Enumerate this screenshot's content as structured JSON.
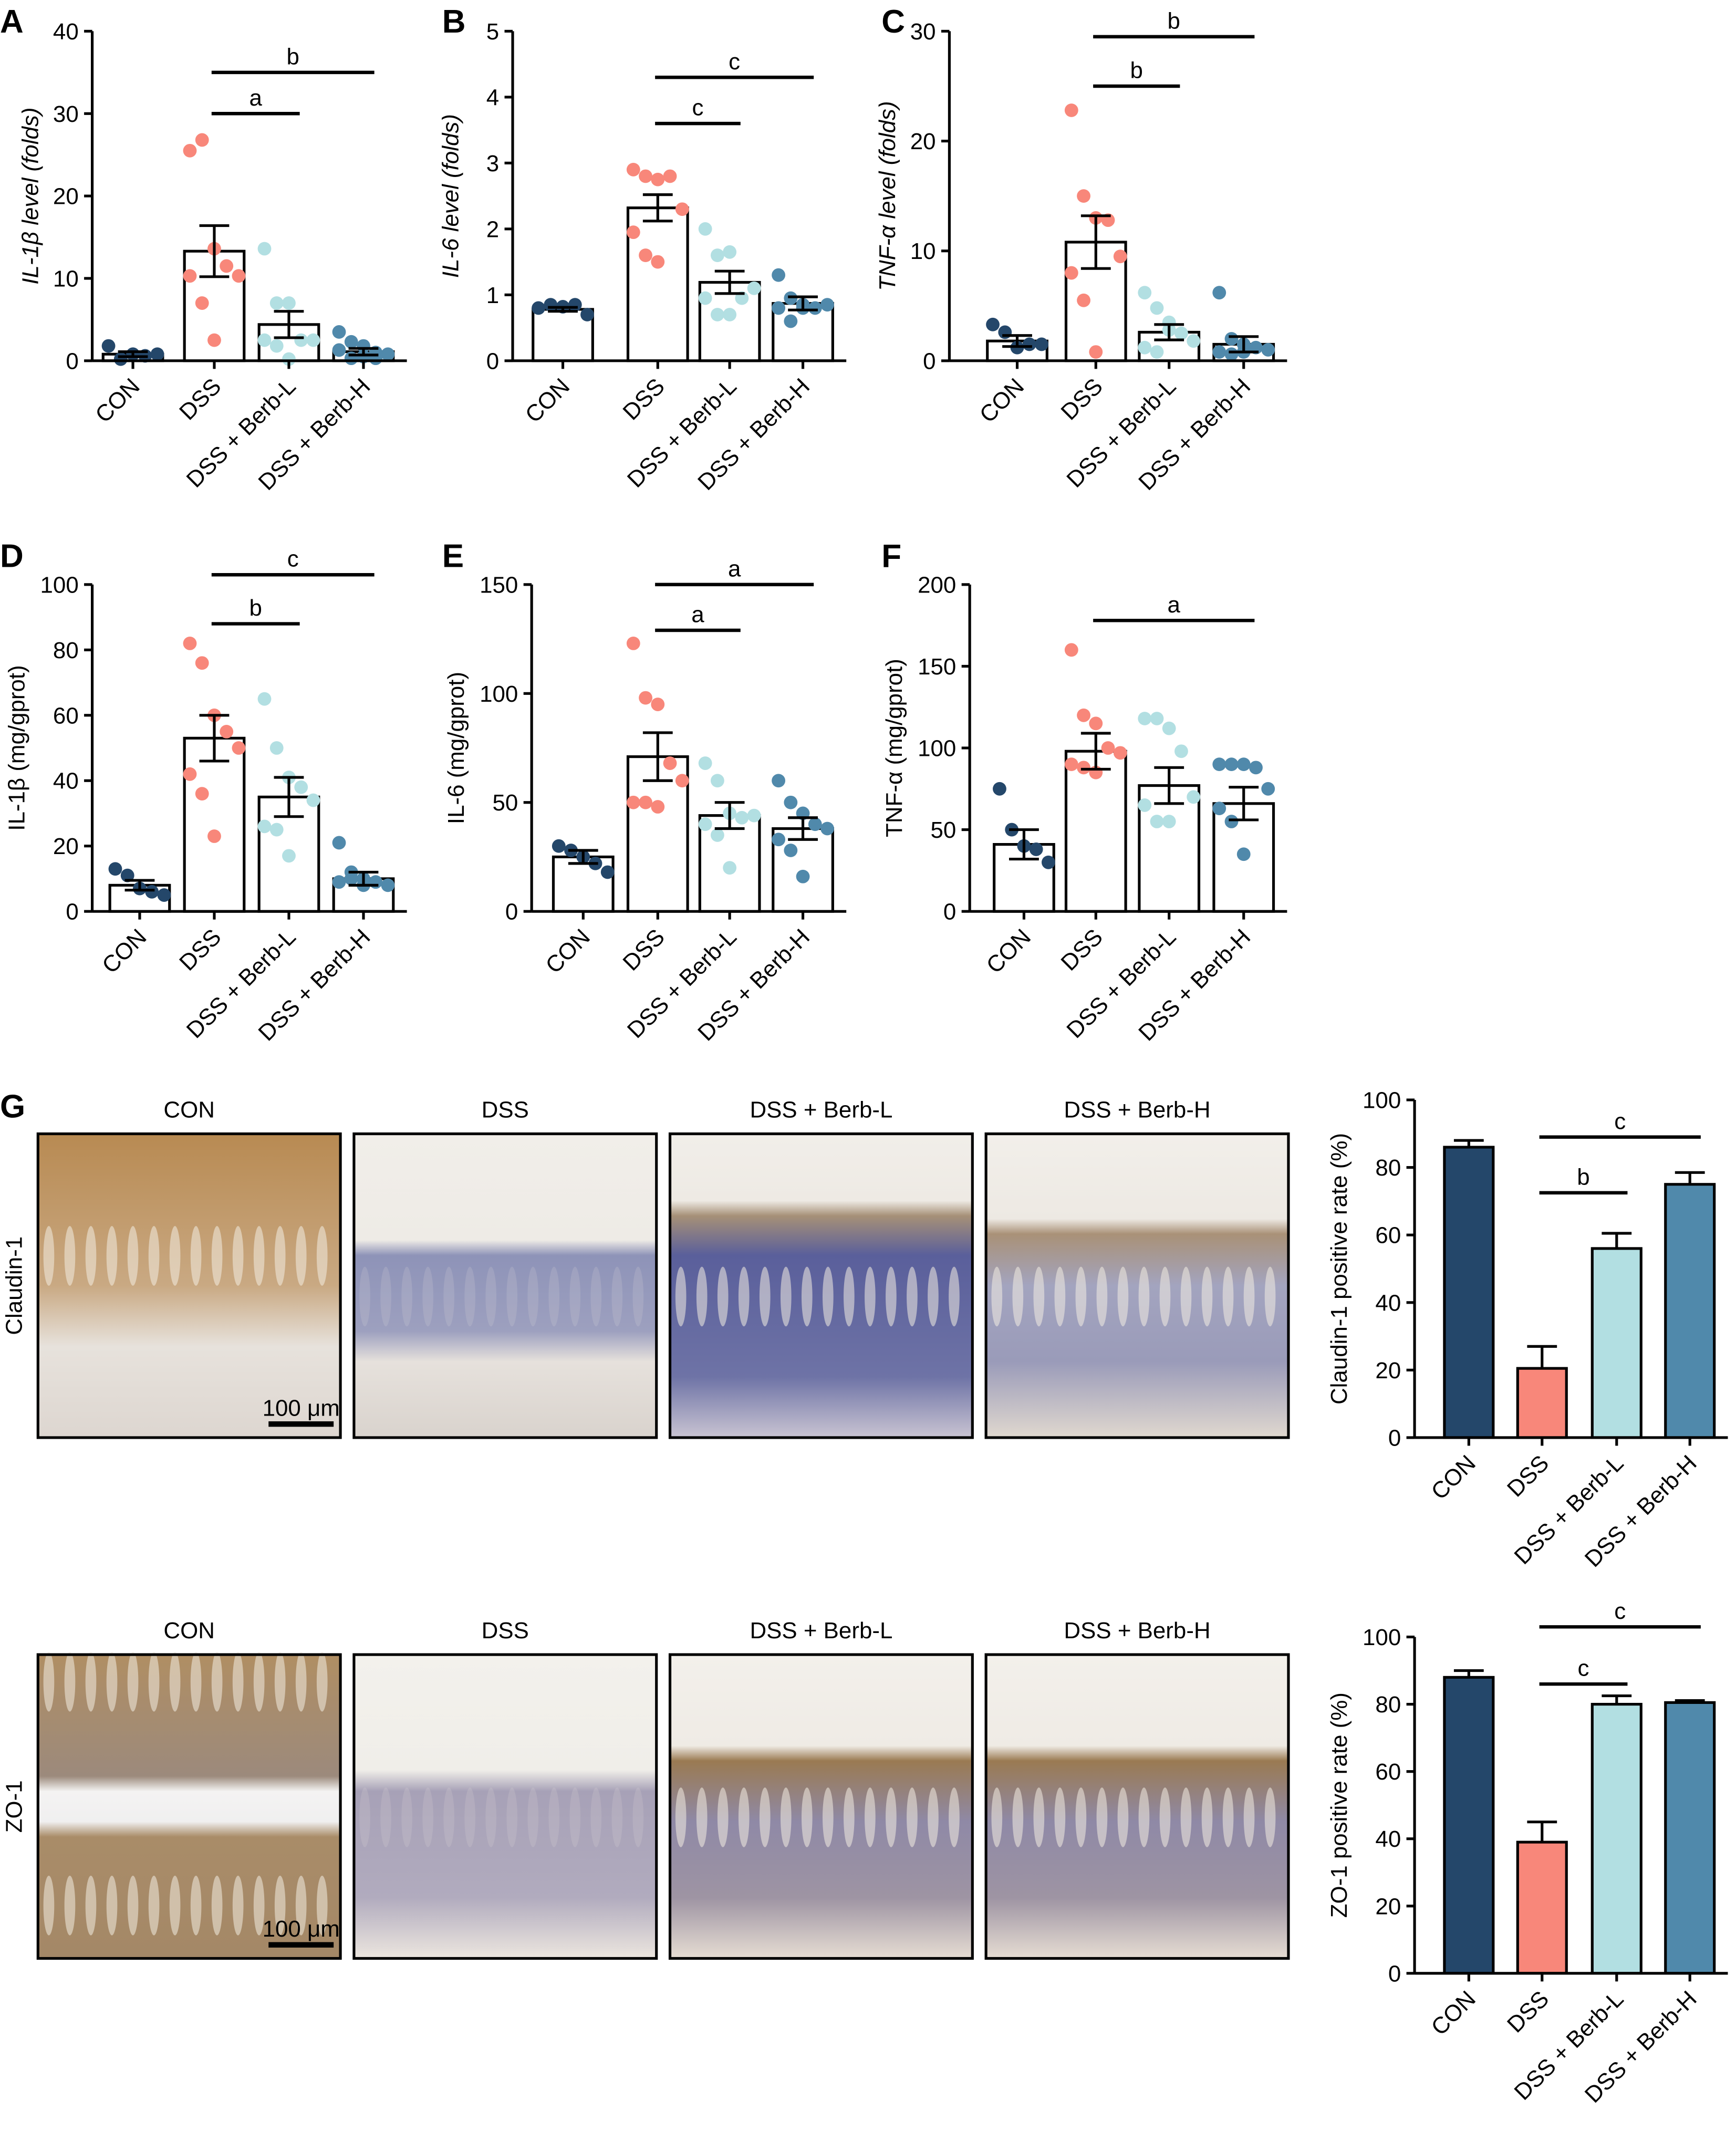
{
  "colors": {
    "CON": "#24476a",
    "DSS": "#f8877a",
    "DSS + Berb-L": "#b2dfe2",
    "DSS + Berb-H": "#5089ab"
  },
  "micrographs": {
    "letter": "G",
    "columns": [
      "CON",
      "DSS",
      "DSS + Berb-L",
      "DSS + Berb-H"
    ],
    "rows": [
      "Claudin-1",
      "ZO-1"
    ],
    "scale_bar": "100 μm"
  },
  "chart_data": [
    {
      "letter": "A",
      "type": "bar+scatter",
      "ylabel": "IL-1β level (folds)",
      "italic": true,
      "ylim": [
        0,
        40
      ],
      "yticks": [
        "0",
        "10",
        "20",
        "30",
        "40"
      ],
      "categories": [
        "CON",
        "DSS",
        "DSS + Berb-L",
        "DSS + Berb-H"
      ],
      "means": [
        0.8,
        13.3,
        4.4,
        1.1
      ],
      "sem": [
        0.3,
        3.1,
        1.6,
        0.4
      ],
      "points": [
        [
          1.8,
          0.2,
          0.8,
          0.6,
          0.8
        ],
        [
          25.5,
          26.8,
          13.6,
          11.5,
          10.3,
          10.3,
          7,
          2.5
        ],
        [
          13.6,
          7,
          7,
          2.5,
          2.5,
          2.5,
          1.8,
          0.2
        ],
        [
          3.5,
          2.3,
          1.8,
          1,
          0.8,
          1.3,
          0.3,
          0.5,
          0.3
        ]
      ],
      "significance": [
        {
          "from": 1,
          "to": 2,
          "y": 30,
          "label": "a"
        },
        {
          "from": 1,
          "to": 3,
          "y": 35,
          "label": "b"
        }
      ]
    },
    {
      "letter": "B",
      "type": "bar+scatter",
      "ylabel": "IL-6 level (folds)",
      "italic": true,
      "ylim": [
        0,
        5
      ],
      "yticks": [
        "0",
        "1",
        "2",
        "3",
        "4",
        "5"
      ],
      "categories": [
        "CON",
        "DSS",
        "DSS + Berb-L",
        "DSS + Berb-H"
      ],
      "means": [
        0.78,
        2.32,
        1.19,
        0.87
      ],
      "sem": [
        0.03,
        0.2,
        0.17,
        0.1
      ],
      "points": [
        [
          0.8,
          0.85,
          0.82,
          0.85,
          0.7
        ],
        [
          2.9,
          2.8,
          2.75,
          2.8,
          2.3,
          1.95,
          1.6,
          1.5
        ],
        [
          2,
          1.6,
          1.65,
          0.95,
          1.1,
          0.95,
          0.7,
          0.7
        ],
        [
          1.3,
          0.95,
          0.85,
          0.8,
          0.85,
          0.8,
          0.6,
          0.8
        ]
      ],
      "significance": [
        {
          "from": 1,
          "to": 2,
          "y": 3.6,
          "label": "c"
        },
        {
          "from": 1,
          "to": 3,
          "y": 4.3,
          "label": "c"
        }
      ]
    },
    {
      "letter": "C",
      "type": "bar+scatter",
      "ylabel": "TNF-α level (folds)",
      "italic": true,
      "ylim": [
        0,
        30
      ],
      "yticks": [
        "0",
        "10",
        "20",
        "30"
      ],
      "categories": [
        "CON",
        "DSS",
        "DSS + Berb-L",
        "DSS + Berb-H"
      ],
      "means": [
        1.8,
        10.8,
        2.6,
        1.5
      ],
      "sem": [
        0.5,
        2.4,
        0.7,
        0.7
      ],
      "points": [
        [
          3.3,
          2.6,
          1.2,
          1.5,
          1.5
        ],
        [
          22.8,
          15,
          13,
          12.8,
          9.5,
          8,
          5.5,
          0.8
        ],
        [
          6.2,
          4.8,
          3.5,
          2.5,
          1.8,
          1.2,
          0.8,
          2.8
        ],
        [
          6.2,
          2,
          1.5,
          1.2,
          1,
          0.8,
          0.6,
          0.8
        ]
      ],
      "significance": [
        {
          "from": 1,
          "to": 2,
          "y": 25,
          "label": "b"
        },
        {
          "from": 1,
          "to": 3,
          "y": 29.5,
          "label": "b"
        }
      ]
    },
    {
      "letter": "D",
      "type": "bar+scatter",
      "ylabel": "IL-1β (mg/gprot)",
      "italic": false,
      "ylim": [
        0,
        100
      ],
      "yticks": [
        "0",
        "20",
        "40",
        "60",
        "80",
        "100"
      ],
      "categories": [
        "CON",
        "DSS",
        "DSS + Berb-L",
        "DSS + Berb-H"
      ],
      "means": [
        8,
        53,
        35,
        10
      ],
      "sem": [
        1.5,
        7,
        6,
        2
      ],
      "points": [
        [
          13,
          11,
          7,
          6,
          5
        ],
        [
          82,
          76,
          60,
          55,
          50,
          42,
          36,
          23
        ],
        [
          65,
          50,
          41,
          38,
          34,
          26,
          25,
          17
        ],
        [
          21,
          12,
          10,
          9,
          8,
          9,
          10,
          8
        ]
      ],
      "significance": [
        {
          "from": 1,
          "to": 2,
          "y": 88,
          "label": "b"
        },
        {
          "from": 1,
          "to": 3,
          "y": 103,
          "label": "c"
        }
      ]
    },
    {
      "letter": "E",
      "type": "bar+scatter",
      "ylabel": "IL-6 (mg/gprot)",
      "italic": false,
      "ylim": [
        0,
        150
      ],
      "yticks": [
        "0",
        "50",
        "100",
        "150"
      ],
      "categories": [
        "CON",
        "DSS",
        "DSS + Berb-L",
        "DSS + Berb-H"
      ],
      "means": [
        25,
        71,
        44,
        38
      ],
      "sem": [
        3,
        11,
        6,
        5
      ],
      "points": [
        [
          30,
          28,
          25,
          22,
          18
        ],
        [
          123,
          98,
          95,
          68,
          60,
          50,
          50,
          48
        ],
        [
          68,
          60,
          45,
          43,
          44,
          40,
          35,
          20
        ],
        [
          60,
          50,
          45,
          40,
          38,
          33,
          28,
          16
        ]
      ],
      "significance": [
        {
          "from": 1,
          "to": 2,
          "y": 129,
          "label": "a"
        },
        {
          "from": 1,
          "to": 3,
          "y": 150,
          "label": "a"
        }
      ]
    },
    {
      "letter": "F",
      "type": "bar+scatter",
      "ylabel": "TNF-α (mg/gprot)",
      "italic": false,
      "ylim": [
        0,
        200
      ],
      "yticks": [
        "0",
        "50",
        "100",
        "150",
        "200"
      ],
      "categories": [
        "CON",
        "DSS",
        "DSS + Berb-L",
        "DSS + Berb-H"
      ],
      "means": [
        41,
        98,
        77,
        66
      ],
      "sem": [
        9,
        11,
        11,
        10
      ],
      "points": [
        [
          75,
          50,
          40,
          38,
          30
        ],
        [
          160,
          120,
          115,
          100,
          97,
          90,
          88,
          85
        ],
        [
          118,
          118,
          112,
          98,
          70,
          65,
          55,
          55
        ],
        [
          90,
          90,
          90,
          88,
          75,
          63,
          55,
          35
        ]
      ],
      "significance": [
        {
          "from": 1,
          "to": 3,
          "y": 178,
          "label": "a"
        }
      ]
    },
    {
      "letter": "",
      "type": "bar",
      "ylabel": "Claudin-1 positive rate (%)",
      "italic": false,
      "ylim": [
        0,
        100
      ],
      "yticks": [
        "0",
        "20",
        "40",
        "60",
        "80",
        "100"
      ],
      "categories": [
        "CON",
        "DSS",
        "DSS + Berb-L",
        "DSS + Berb-H"
      ],
      "means": [
        86,
        20.5,
        56,
        75
      ],
      "sem": [
        2,
        6.5,
        4.5,
        3.5
      ],
      "points": [],
      "significance": [
        {
          "from": 1,
          "to": 2,
          "y": 72.5,
          "label": "b"
        },
        {
          "from": 1,
          "to": 3,
          "y": 89,
          "label": "c"
        }
      ]
    },
    {
      "letter": "",
      "type": "bar",
      "ylabel": "ZO-1 positive rate (%)",
      "italic": false,
      "ylim": [
        0,
        100
      ],
      "yticks": [
        "0",
        "20",
        "40",
        "60",
        "80",
        "100"
      ],
      "categories": [
        "CON",
        "DSS",
        "DSS + Berb-L",
        "DSS + Berb-H"
      ],
      "means": [
        88,
        39,
        80,
        80.5
      ],
      "sem": [
        2,
        6,
        2.5,
        0.6
      ],
      "points": [],
      "significance": [
        {
          "from": 1,
          "to": 2,
          "y": 86,
          "label": "c"
        },
        {
          "from": 1,
          "to": 3,
          "y": 103,
          "label": "c"
        }
      ]
    }
  ]
}
